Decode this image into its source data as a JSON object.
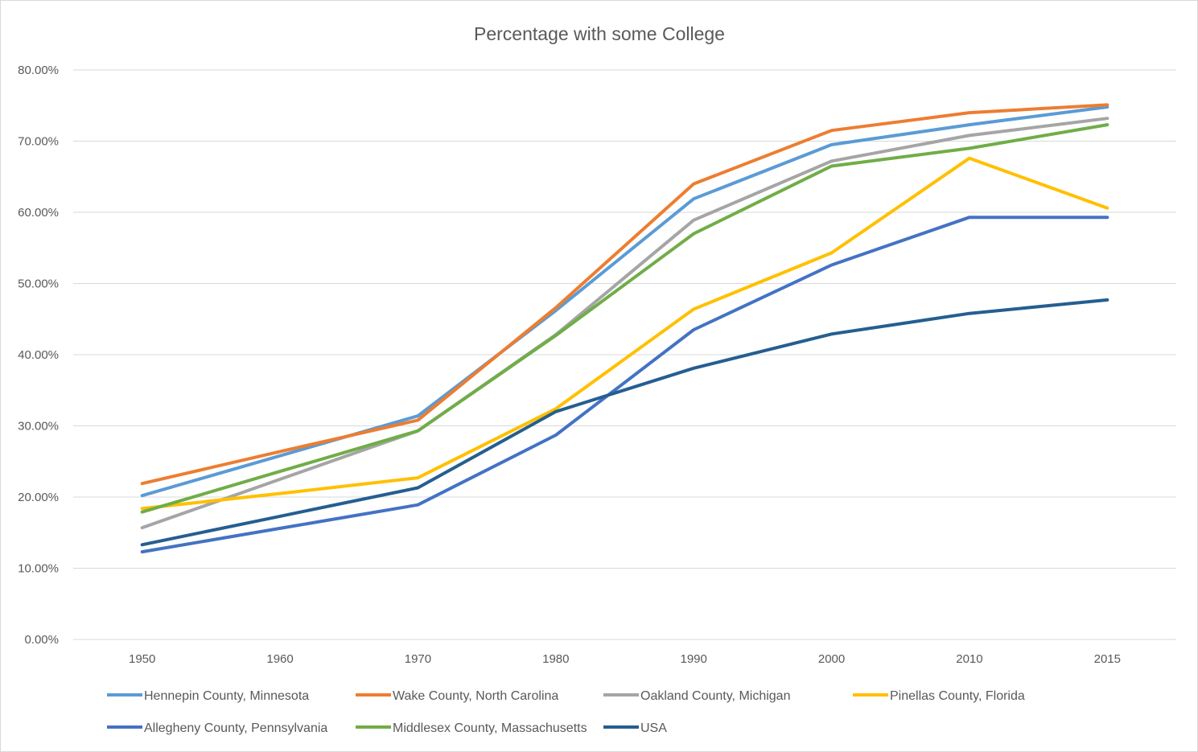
{
  "chart_data": {
    "type": "line",
    "title": "Percentage with some College",
    "xlabel": "",
    "ylabel": "",
    "categories": [
      "1950",
      "1960",
      "1970",
      "1980",
      "1990",
      "2000",
      "2010",
      "2015"
    ],
    "y_ticks": [
      "0.00%",
      "10.00%",
      "20.00%",
      "30.00%",
      "40.00%",
      "50.00%",
      "60.00%",
      "70.00%",
      "80.00%"
    ],
    "ylim": [
      0,
      80
    ],
    "grid": true,
    "legend_position": "bottom",
    "series": [
      {
        "name": "Hennepin County, Minnesota",
        "color": "#5b9bd5",
        "values": [
          20.2,
          25.8,
          31.4,
          46.2,
          61.9,
          69.5,
          72.3,
          74.8
        ]
      },
      {
        "name": "Wake County, North Carolina",
        "color": "#ed7d31",
        "values": [
          21.9,
          26.4,
          30.8,
          46.6,
          64.0,
          71.5,
          74.0,
          75.1
        ]
      },
      {
        "name": "Oakland County, Michigan",
        "color": "#a5a5a5",
        "values": [
          15.7,
          22.5,
          29.3,
          42.8,
          58.9,
          67.2,
          70.8,
          73.2
        ]
      },
      {
        "name": "Pinellas County, Florida",
        "color": "#ffc000",
        "values": [
          18.4,
          20.5,
          22.7,
          32.4,
          46.4,
          54.3,
          67.6,
          60.6
        ]
      },
      {
        "name": "Allegheny County, Pennsylvania",
        "color": "#4472c4",
        "values": [
          12.3,
          15.6,
          18.9,
          28.7,
          43.5,
          52.6,
          59.3,
          59.3
        ]
      },
      {
        "name": "Middlesex County, Massachusetts",
        "color": "#70ad47",
        "values": [
          17.9,
          23.6,
          29.3,
          42.7,
          57.0,
          66.5,
          69.0,
          72.3
        ]
      },
      {
        "name": "USA",
        "color": "#255e91",
        "values": [
          13.3,
          17.3,
          21.3,
          32.0,
          38.1,
          42.9,
          45.8,
          47.7
        ]
      }
    ]
  }
}
